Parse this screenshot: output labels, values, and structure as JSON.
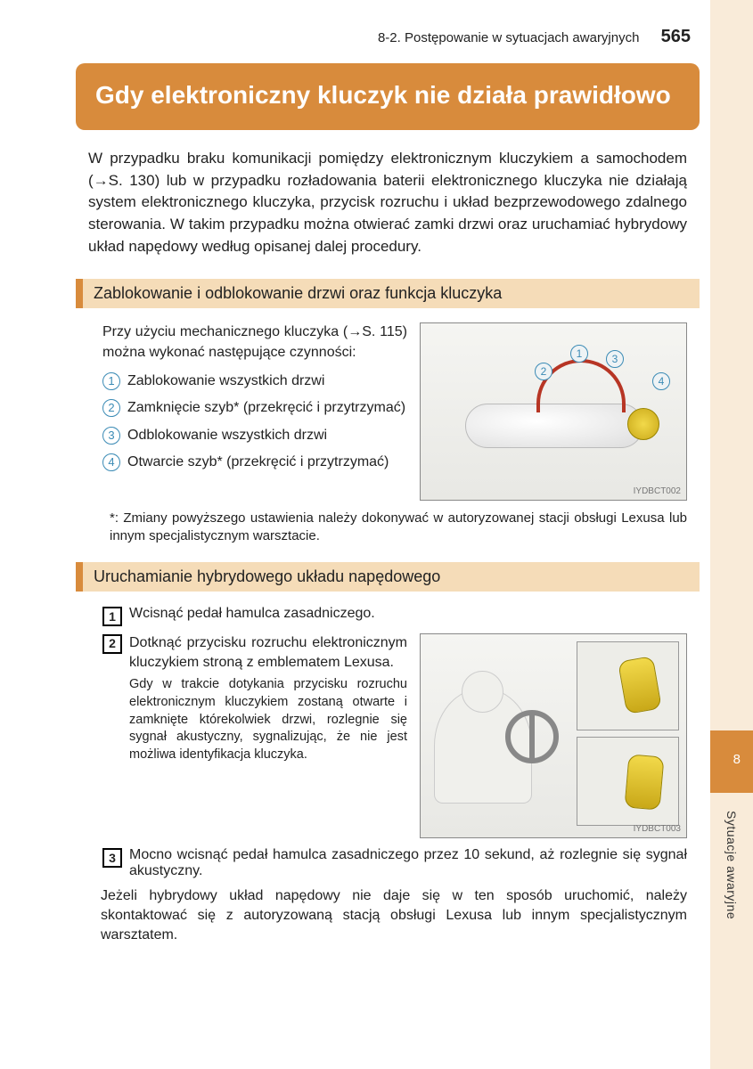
{
  "page": {
    "section_header": "8-2. Postępowanie w sytuacjach awaryjnych",
    "page_number": "565",
    "chapter_num": "8",
    "side_tab": "Sytuacje awaryjne"
  },
  "colors": {
    "accent": "#d88b3c",
    "band": "#f9ebd9",
    "section_bg": "#f5dcb8",
    "circle": "#3b8bb5"
  },
  "title": "Gdy elektroniczny kluczyk nie działa prawidłowo",
  "intro": "W przypadku braku komunikacji pomiędzy elektronicznym kluczykiem a samochodem (→S. 130) lub w przypadku rozładowania baterii elektronicznego kluczyka nie działają system elektronicznego kluczyka, przycisk rozruchu i układ bezprzewodowego zdalnego sterowania. W takim przypadku można otwierać zamki drzwi oraz uruchamiać hybrydowy układ napędowy według opisanej dalej procedury.",
  "section1": {
    "heading": "Zablokowanie i odblokowanie drzwi oraz funkcja kluczyka",
    "intro": "Przy użyciu mechanicznego kluczyka (→S. 115) można wykonać następujące czynności:",
    "items": [
      "Zablokowanie wszystkich drzwi",
      "Zamknięcie szyb* (przekręcić i przytrzymać)",
      "Odblokowanie wszystkich drzwi",
      "Otwarcie szyb* (przekręcić i przytrzymać)"
    ],
    "footnote": "*: Zmiany powyższego ustawienia należy dokonywać w autoryzowanej stacji obsługi Lexusa lub innym specjalistycznym warsztacie.",
    "fig_label": "IYDBCT002",
    "callouts": [
      "1",
      "2",
      "3",
      "4"
    ]
  },
  "section2": {
    "heading": "Uruchamianie hybrydowego układu napędowego",
    "steps": [
      {
        "main": "Wcisnąć pedał hamulca zasadniczego."
      },
      {
        "main": "Dotknąć przycisku rozruchu elektronicznym kluczykiem stroną z emblematem Lexusa.",
        "sub": "Gdy w trakcie dotykania przycisku rozruchu elektronicznym kluczykiem zostaną otwarte i zamknięte którekolwiek drzwi, rozlegnie się sygnał akustyczny, sygnalizując, że nie jest możliwa identyfikacja kluczyka."
      },
      {
        "main": "Mocno wcisnąć pedał hamulca zasadniczego przez 10 sekund, aż rozlegnie się sygnał akustyczny."
      }
    ],
    "closing": "Jeżeli hybrydowy układ napędowy nie daje się w ten sposób uruchomić, należy skontaktować się z autoryzowaną stacją obsługi Lexusa lub innym specjalistycznym warsztatem.",
    "fig_label": "IYDBCT003"
  }
}
